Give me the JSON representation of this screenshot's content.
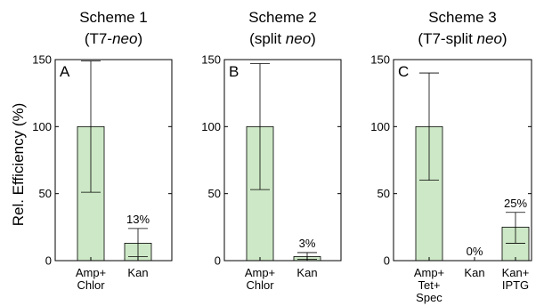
{
  "figure": {
    "ylabel": "Rel. Efficiency (%)"
  },
  "chart_data": [
    {
      "type": "bar",
      "panel": "A",
      "title_line1": "Scheme 1",
      "title_line2_prefix": "(T7-",
      "title_line2_italic": "neo",
      "title_line2_suffix": ")",
      "ylim": [
        0,
        150
      ],
      "yticks": [
        "0",
        "50",
        "100",
        "150"
      ],
      "categories": [
        [
          "Amp+",
          "Chlor"
        ],
        [
          "Kan"
        ]
      ],
      "values": [
        100,
        13
      ],
      "error_low": [
        51,
        3
      ],
      "error_high": [
        149,
        24
      ],
      "labels": [
        "",
        "13%"
      ],
      "bar_color": "#cde8c6",
      "grid": false
    },
    {
      "type": "bar",
      "panel": "B",
      "title_line1": "Scheme 2",
      "title_line2_prefix": "(split ",
      "title_line2_italic": "neo",
      "title_line2_suffix": ")",
      "ylim": [
        0,
        150
      ],
      "yticks": [
        "0",
        "50",
        "100",
        "150"
      ],
      "categories": [
        [
          "Amp+",
          "Chlor"
        ],
        [
          "Kan"
        ]
      ],
      "values": [
        100,
        3
      ],
      "error_low": [
        53,
        1
      ],
      "error_high": [
        147,
        6
      ],
      "labels": [
        "",
        "3%"
      ],
      "bar_color": "#cde8c6",
      "grid": false
    },
    {
      "type": "bar",
      "panel": "C",
      "title_line1": "Scheme 3",
      "title_line2_prefix": "(T7-split ",
      "title_line2_italic": "neo",
      "title_line2_suffix": ")",
      "ylim": [
        0,
        150
      ],
      "yticks": [
        "0",
        "50",
        "100",
        "150"
      ],
      "categories": [
        [
          "Amp+",
          "Tet+",
          "Spec"
        ],
        [
          "Kan"
        ],
        [
          "Kan+",
          "IPTG"
        ]
      ],
      "values": [
        100,
        0,
        25
      ],
      "error_low": [
        60,
        null,
        13
      ],
      "error_high": [
        140,
        null,
        36
      ],
      "labels": [
        "",
        "0%",
        "25%"
      ],
      "bar_color": "#cde8c6",
      "grid": false
    }
  ]
}
